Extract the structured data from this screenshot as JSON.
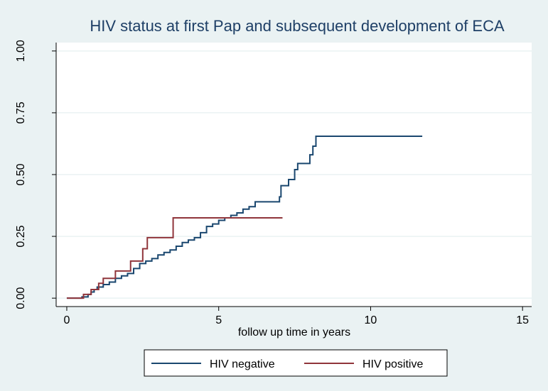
{
  "chart_data": {
    "type": "line",
    "step": true,
    "title": "HIV status at first Pap and subsequent development of ECA",
    "xlabel": "follow up time in years",
    "xlim": [
      -0.35,
      15.3
    ],
    "xticks": [
      0,
      5,
      10,
      15
    ],
    "ylim": [
      -0.034,
      1.034
    ],
    "yticks": [
      {
        "value": 0,
        "label": "0.00"
      },
      {
        "value": 0.25,
        "label": "0.25"
      },
      {
        "value": 0.5,
        "label": "0.50"
      },
      {
        "value": 0.75,
        "label": "0.75"
      },
      {
        "value": 1,
        "label": "1.00"
      }
    ],
    "grid": true,
    "legend": "bottom",
    "series": [
      {
        "name": "HIV negative",
        "color": "#1a476f",
        "x": [
          0,
          0.5,
          0.7,
          0.8,
          0.9,
          1.0,
          1.2,
          1.4,
          1.6,
          1.8,
          2.0,
          2.2,
          2.4,
          2.6,
          2.8,
          3.0,
          3.2,
          3.4,
          3.6,
          3.8,
          4.0,
          4.2,
          4.4,
          4.6,
          4.8,
          5.0,
          5.2,
          5.4,
          5.6,
          5.8,
          6.0,
          6.2,
          7.0,
          7.05,
          7.3,
          7.5,
          7.6,
          8.0,
          8.1,
          8.2,
          11.7
        ],
        "values": [
          0,
          0.005,
          0.015,
          0.025,
          0.035,
          0.045,
          0.055,
          0.065,
          0.08,
          0.09,
          0.1,
          0.12,
          0.14,
          0.15,
          0.16,
          0.175,
          0.185,
          0.195,
          0.21,
          0.225,
          0.235,
          0.245,
          0.265,
          0.29,
          0.3,
          0.315,
          0.325,
          0.335,
          0.345,
          0.36,
          0.37,
          0.39,
          0.41,
          0.455,
          0.48,
          0.52,
          0.545,
          0.58,
          0.615,
          0.655,
          0.655
        ]
      },
      {
        "name": "HIV positive",
        "color": "#90353b",
        "x": [
          0,
          0.55,
          0.8,
          1.05,
          1.2,
          1.6,
          2.1,
          2.5,
          2.65,
          3.5,
          7.1
        ],
        "values": [
          0,
          0.015,
          0.035,
          0.06,
          0.08,
          0.11,
          0.15,
          0.2,
          0.245,
          0.325,
          0.325
        ]
      }
    ]
  }
}
